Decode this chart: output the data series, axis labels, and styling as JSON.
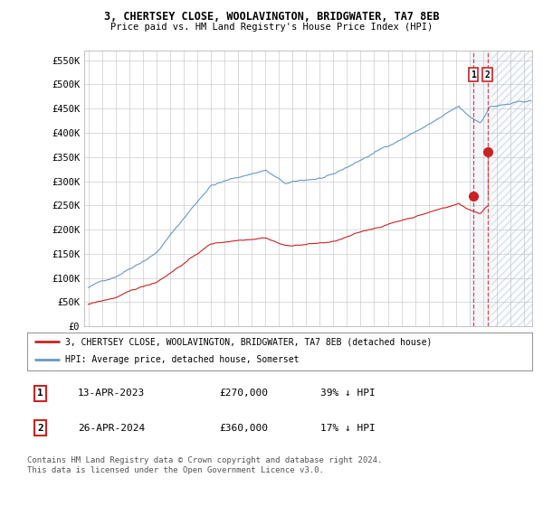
{
  "title": "3, CHERTSEY CLOSE, WOOLAVINGTON, BRIDGWATER, TA7 8EB",
  "subtitle": "Price paid vs. HM Land Registry's House Price Index (HPI)",
  "ylim": [
    0,
    570000
  ],
  "yticks": [
    0,
    50000,
    100000,
    150000,
    200000,
    250000,
    300000,
    350000,
    400000,
    450000,
    500000,
    550000
  ],
  "ytick_labels": [
    "£0",
    "£50K",
    "£100K",
    "£150K",
    "£200K",
    "£250K",
    "£300K",
    "£350K",
    "£400K",
    "£450K",
    "£500K",
    "£550K"
  ],
  "hpi_color": "#6699cc",
  "price_color": "#cc2222",
  "point1_date": 2023.28,
  "point1_value": 270000,
  "point2_date": 2024.32,
  "point2_value": 360000,
  "legend_label1": "3, CHERTSEY CLOSE, WOOLAVINGTON, BRIDGWATER, TA7 8EB (detached house)",
  "legend_label2": "HPI: Average price, detached house, Somerset",
  "table_row1": [
    "1",
    "13-APR-2023",
    "£270,000",
    "39% ↓ HPI"
  ],
  "table_row2": [
    "2",
    "26-APR-2024",
    "£360,000",
    "17% ↓ HPI"
  ],
  "footnote": "Contains HM Land Registry data © Crown copyright and database right 2024.\nThis data is licensed under the Open Government Licence v3.0.",
  "hatch_region_start": 2024.6,
  "hatch_region_end": 2027.6,
  "shade_region_start": 2023.0,
  "shade_region_end": 2024.6,
  "background_color": "#ffffff",
  "grid_color": "#cccccc",
  "xlim_start": 1994.7,
  "xlim_end": 2027.6
}
